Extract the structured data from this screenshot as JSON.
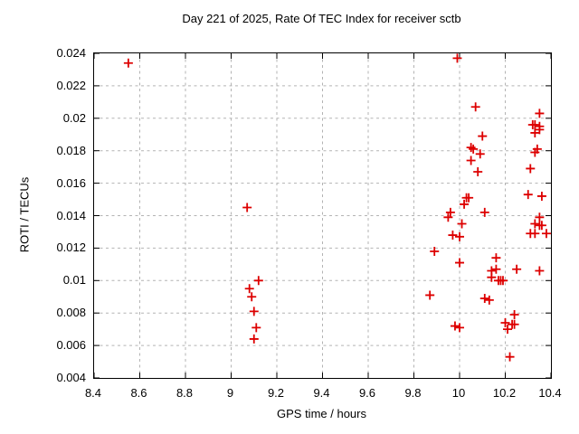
{
  "page": {
    "background_color": "#ffffff",
    "text_color": "#000000"
  },
  "chart_data": {
    "type": "scatter",
    "title": "Day 221 of 2025, Rate Of TEC Index for receiver sctb",
    "xlabel": "GPS time / hours",
    "ylabel": "ROTI / TECUs",
    "xlim": [
      8.4,
      10.4
    ],
    "ylim": [
      0.004,
      0.024
    ],
    "x_ticks": [
      8.4,
      8.6,
      8.8,
      9.0,
      9.2,
      9.4,
      9.6,
      9.8,
      10.0,
      10.2,
      10.4
    ],
    "x_tick_labels": [
      "8.4",
      "8.6",
      "8.8",
      "9",
      "9.2",
      "9.4",
      "9.6",
      "9.8",
      "10",
      "10.2",
      "10.4"
    ],
    "y_ticks": [
      0.004,
      0.006,
      0.008,
      0.01,
      0.012,
      0.014,
      0.016,
      0.018,
      0.02,
      0.022,
      0.024
    ],
    "y_tick_labels": [
      "0.004",
      "0.006",
      "0.008",
      "0.01",
      "0.012",
      "0.014",
      "0.016",
      "0.018",
      "0.02",
      "0.022",
      "0.024"
    ],
    "grid": true,
    "legend": "none",
    "marker": "plus",
    "marker_color": "#dd0000",
    "grid_color": "#b3b3b3",
    "border_color": "#000000",
    "series": [
      {
        "points": [
          [
            8.55,
            0.0234
          ],
          [
            9.07,
            0.0145
          ],
          [
            9.12,
            0.01
          ],
          [
            9.08,
            0.0095
          ],
          [
            9.09,
            0.009
          ],
          [
            9.1,
            0.0081
          ],
          [
            9.11,
            0.0071
          ],
          [
            9.1,
            0.0064
          ],
          [
            9.99,
            0.0237
          ],
          [
            10.07,
            0.0207
          ],
          [
            10.35,
            0.0203
          ],
          [
            10.32,
            0.0196
          ],
          [
            10.33,
            0.0196
          ],
          [
            10.35,
            0.0195
          ],
          [
            10.35,
            0.0193
          ],
          [
            10.33,
            0.0191
          ],
          [
            10.1,
            0.0189
          ],
          [
            10.05,
            0.0182
          ],
          [
            10.06,
            0.0181
          ],
          [
            10.09,
            0.0178
          ],
          [
            10.34,
            0.0181
          ],
          [
            10.33,
            0.0179
          ],
          [
            10.05,
            0.0174
          ],
          [
            10.31,
            0.0169
          ],
          [
            10.08,
            0.0167
          ],
          [
            10.3,
            0.0153
          ],
          [
            10.36,
            0.0152
          ],
          [
            10.03,
            0.0151
          ],
          [
            10.04,
            0.0151
          ],
          [
            10.02,
            0.0147
          ],
          [
            9.96,
            0.0142
          ],
          [
            10.11,
            0.0142
          ],
          [
            9.95,
            0.0139
          ],
          [
            10.35,
            0.0139
          ],
          [
            10.33,
            0.0135
          ],
          [
            10.01,
            0.0135
          ],
          [
            10.35,
            0.0134
          ],
          [
            10.36,
            0.0134
          ],
          [
            10.31,
            0.0129
          ],
          [
            10.33,
            0.0129
          ],
          [
            10.38,
            0.0129
          ],
          [
            9.97,
            0.0128
          ],
          [
            10.0,
            0.0127
          ],
          [
            9.89,
            0.0118
          ],
          [
            10.16,
            0.0114
          ],
          [
            10.0,
            0.0111
          ],
          [
            10.25,
            0.0107
          ],
          [
            10.16,
            0.0107
          ],
          [
            10.14,
            0.0106
          ],
          [
            10.35,
            0.0106
          ],
          [
            10.14,
            0.0102
          ],
          [
            10.17,
            0.01
          ],
          [
            10.18,
            0.01
          ],
          [
            10.19,
            0.01
          ],
          [
            9.87,
            0.0091
          ],
          [
            10.11,
            0.0089
          ],
          [
            10.13,
            0.0088
          ],
          [
            10.24,
            0.0079
          ],
          [
            10.2,
            0.0074
          ],
          [
            10.23,
            0.0073
          ],
          [
            10.24,
            0.0073
          ],
          [
            9.98,
            0.0072
          ],
          [
            10.0,
            0.0071
          ],
          [
            10.21,
            0.007
          ],
          [
            10.22,
            0.0053
          ]
        ]
      }
    ]
  }
}
